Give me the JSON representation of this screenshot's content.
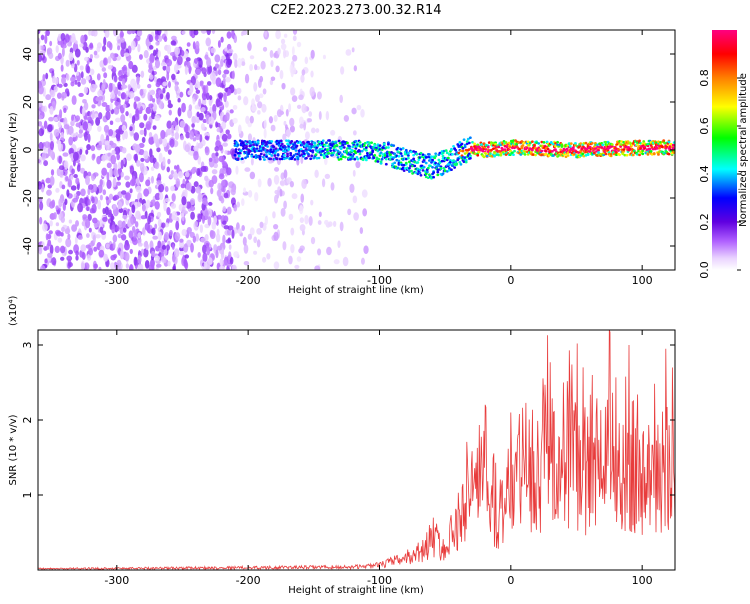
{
  "title": "C2E2.2023.273.00.32.R14",
  "chart_data": [
    {
      "type": "heatmap",
      "title": "C2E2.2023.273.00.32.R14",
      "xlabel": "Height of straight line (km)",
      "ylabel": "Frequency (Hz)",
      "xlim": [
        -360,
        125
      ],
      "ylim": [
        -50,
        50
      ],
      "x_ticks": [
        -300,
        -200,
        -100,
        0,
        100
      ],
      "y_ticks": [
        -40,
        -20,
        0,
        20,
        40
      ],
      "colorbar": {
        "label": "Normalized spectral amplitude",
        "range": [
          0,
          1
        ],
        "ticks": [
          "0.0",
          "0.2",
          "0.4",
          "0.6",
          "0.8"
        ],
        "colormap": [
          "#ffffff",
          "#e9d2ff",
          "#b060ff",
          "#6000e0",
          "#0000ff",
          "#00ffff",
          "#00ff00",
          "#ffff00",
          "#ff8000",
          "#ff0000",
          "#ff0080"
        ]
      },
      "ridge_center": {
        "x": [
          -210,
          -180,
          -150,
          -120,
          -100,
          -85,
          -70,
          -60,
          -50,
          -40,
          -30,
          -20,
          0,
          50,
          100,
          125
        ],
        "y": [
          0,
          0,
          0,
          0,
          -1,
          -3,
          -6,
          -7,
          -5,
          -2,
          1,
          0,
          1,
          0,
          1,
          1
        ]
      }
    },
    {
      "type": "line",
      "xlabel": "Height of straight line (km)",
      "ylabel": "SNR (10 * v/v)",
      "y_multiplier": "(x10⁴)",
      "xlim": [
        -360,
        125
      ],
      "ylim": [
        0,
        3.2
      ],
      "x_ticks": [
        -300,
        -200,
        -100,
        0,
        100
      ],
      "y_ticks": [
        1,
        2,
        3
      ],
      "color": "#e83c3c",
      "envelope": {
        "x": [
          -360,
          -200,
          -120,
          -100,
          -80,
          -65,
          -60,
          -50,
          -40,
          -30,
          -20,
          -10,
          0,
          10,
          20,
          30,
          40,
          50,
          60,
          70,
          80,
          90,
          100,
          110,
          120,
          125
        ],
        "y": [
          0.02,
          0.04,
          0.05,
          0.08,
          0.2,
          0.35,
          0.6,
          0.3,
          0.9,
          1.0,
          1.3,
          0.9,
          1.3,
          1.5,
          1.3,
          1.8,
          1.6,
          1.7,
          1.4,
          1.9,
          1.7,
          1.6,
          1.5,
          1.4,
          1.3,
          1.2
        ]
      },
      "peaks": [
        {
          "x": -19,
          "y": 2.17
        },
        {
          "x": 28,
          "y": 3.13
        },
        {
          "x": 40,
          "y": 2.5
        },
        {
          "x": 45,
          "y": 2.47
        },
        {
          "x": 62,
          "y": 2.6
        },
        {
          "x": 75,
          "y": 3.2
        },
        {
          "x": 90,
          "y": 3.0
        },
        {
          "x": 118,
          "y": 2.95
        },
        {
          "x": 123,
          "y": 2.7
        }
      ]
    }
  ]
}
